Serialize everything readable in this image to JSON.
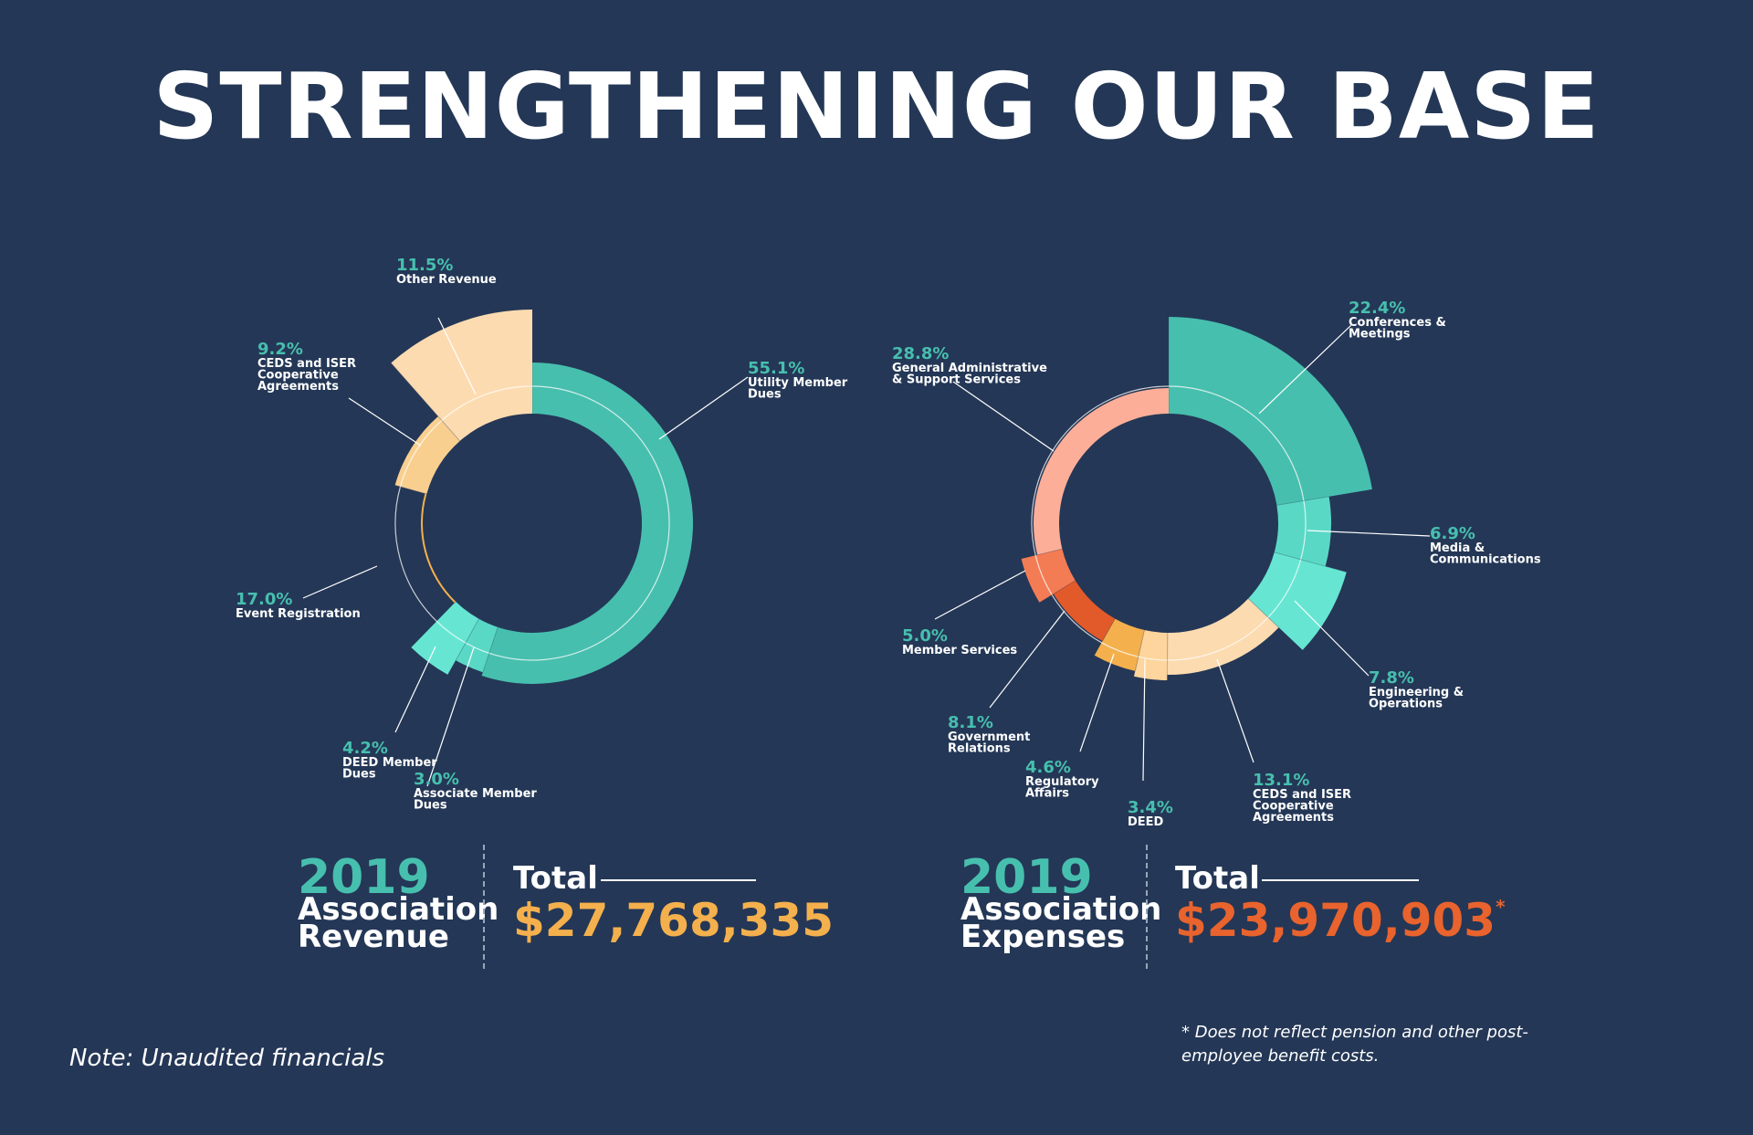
{
  "title": "STRENGTHENING OUR BASE",
  "colors": {
    "background": "#243756",
    "teal_text": "#47bfae",
    "revenue_total": "#f4b04d",
    "expense_total": "#e8632d"
  },
  "revenue": {
    "year": "2019",
    "line1": "Association",
    "line2": "Revenue",
    "total_label": "Total",
    "total_value": "$27,768,335"
  },
  "expenses": {
    "year": "2019",
    "line1": "Association",
    "line2": "Expenses",
    "total_label": "Total",
    "total_value": "$23,970,903",
    "asterisk": "*"
  },
  "note": "Note: Unaudited financials",
  "footnote": {
    "line1": "* Does not reflect pension and other post-",
    "line2": "employee benefit costs."
  },
  "chart_data": [
    {
      "type": "pie",
      "variant": "radial-donut",
      "title": "2019 Association Revenue",
      "segments": [
        {
          "pct": "55.1%",
          "value": 55.1,
          "label": [
            "Utility Member",
            "Dues"
          ],
          "color": "#47bfae"
        },
        {
          "pct": "3.0%",
          "value": 3.0,
          "label": [
            "Associate Member",
            "Dues"
          ],
          "color": "#5ad8c6"
        },
        {
          "pct": "4.2%",
          "value": 4.2,
          "label": [
            "DEED Member",
            "Dues"
          ],
          "color": "#66e6d2"
        },
        {
          "pct": "17.0%",
          "value": 17.0,
          "label": [
            "Event Registration"
          ],
          "color": "#f4b04d"
        },
        {
          "pct": "9.2%",
          "value": 9.2,
          "label": [
            "CEDS and ISER",
            "Cooperative",
            "Agreements"
          ],
          "color": "#f9cf90"
        },
        {
          "pct": "11.5%",
          "value": 11.5,
          "label": [
            "Other Revenue"
          ],
          "color": "#fddbb0"
        }
      ]
    },
    {
      "type": "pie",
      "variant": "radial-donut",
      "title": "2019 Association Expenses",
      "segments": [
        {
          "pct": "22.4%",
          "value": 22.4,
          "label": [
            "Conferences &",
            "Meetings"
          ],
          "color": "#47bfae"
        },
        {
          "pct": "6.9%",
          "value": 6.9,
          "label": [
            "Media &",
            "Communications"
          ],
          "color": "#5ad8c6"
        },
        {
          "pct": "7.8%",
          "value": 7.8,
          "label": [
            "Engineering &",
            "Operations"
          ],
          "color": "#66e6d2"
        },
        {
          "pct": "13.1%",
          "value": 13.1,
          "label": [
            "CEDS and ISER",
            "Cooperative",
            "Agreements"
          ],
          "color": "#fddbb0"
        },
        {
          "pct": "3.4%",
          "value": 3.4,
          "label": [
            "DEED"
          ],
          "color": "#fed59c"
        },
        {
          "pct": "4.6%",
          "value": 4.6,
          "label": [
            "Regulatory",
            "Affairs"
          ],
          "color": "#f4b04d"
        },
        {
          "pct": "8.1%",
          "value": 8.1,
          "label": [
            "Government",
            "Relations"
          ],
          "color": "#e35a2a"
        },
        {
          "pct": "5.0%",
          "value": 5.0,
          "label": [
            "Member Services"
          ],
          "color": "#f47c55"
        },
        {
          "pct": "28.8%",
          "value": 28.8,
          "label": [
            "General Administrative",
            "& Support Services"
          ],
          "color": "#fdae98"
        }
      ]
    }
  ]
}
